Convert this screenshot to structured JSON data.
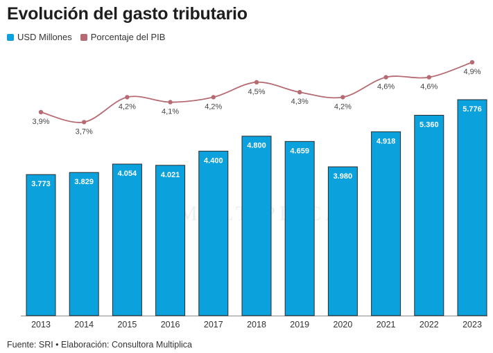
{
  "header": {
    "title": "Evolución del gasto tributario"
  },
  "legend": {
    "items": [
      {
        "label": "USD Millones",
        "color": "#0aa1dd"
      },
      {
        "label": "Porcentaje del PIB",
        "color": "#b66a72"
      }
    ]
  },
  "watermark": "MULTIPLICA",
  "footer": {
    "source": "Fuente: SRI • Elaboración: Consultora Multiplica"
  },
  "chart_data": {
    "type": "bar",
    "categories": [
      "2013",
      "2014",
      "2015",
      "2016",
      "2017",
      "2018",
      "2019",
      "2020",
      "2021",
      "2022",
      "2023"
    ],
    "series": [
      {
        "name": "USD Millones",
        "type": "bar",
        "color": "#0aa1dd",
        "values": [
          3773,
          3829,
          4054,
          4021,
          4400,
          4800,
          4659,
          3980,
          4918,
          5360,
          5776
        ],
        "labels": [
          "3.773",
          "3.829",
          "4.054",
          "4.021",
          "4.400",
          "4.800",
          "4.659",
          "3.980",
          "4.918",
          "5.360",
          "5.776"
        ]
      },
      {
        "name": "Porcentaje del PIB",
        "type": "line",
        "color": "#b66a72",
        "values": [
          3.9,
          3.7,
          4.2,
          4.1,
          4.2,
          4.5,
          4.3,
          4.2,
          4.6,
          4.6,
          4.9
        ],
        "labels": [
          "3,9%",
          "3,7%",
          "4,2%",
          "4,1%",
          "4,2%",
          "4,5%",
          "4,3%",
          "4,2%",
          "4,6%",
          "4,6%",
          "4,9%"
        ]
      }
    ],
    "grid": false,
    "legend_position": "top-left"
  }
}
